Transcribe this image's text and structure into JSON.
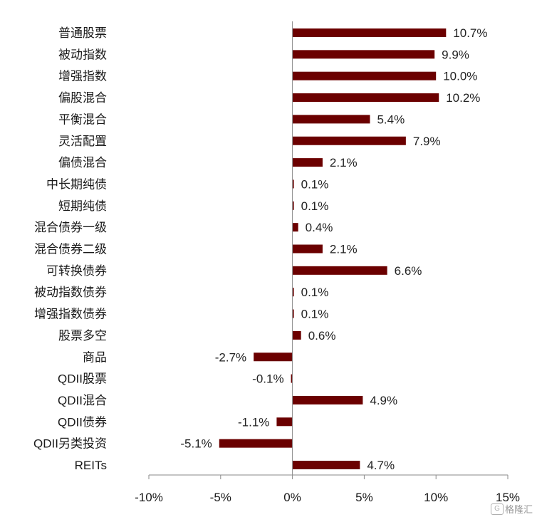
{
  "chart_data": {
    "type": "bar",
    "orientation": "horizontal",
    "categories": [
      "普通股票",
      "被动指数",
      "增强指数",
      "偏股混合",
      "平衡混合",
      "灵活配置",
      "偏债混合",
      "中长期纯债",
      "短期纯债",
      "混合债券一级",
      "混合债券二级",
      "可转换债券",
      "被动指数债券",
      "增强指数债券",
      "股票多空",
      "商品",
      "QDII股票",
      "QDII混合",
      "QDII债券",
      "QDII另类投资",
      "REITs"
    ],
    "values": [
      10.7,
      9.9,
      10.0,
      10.2,
      5.4,
      7.9,
      2.1,
      0.1,
      0.1,
      0.4,
      2.1,
      6.6,
      0.1,
      0.1,
      0.6,
      -2.7,
      -0.1,
      4.9,
      -1.1,
      -5.1,
      4.7
    ],
    "value_labels": [
      "10.7%",
      "9.9%",
      "10.0%",
      "10.2%",
      "5.4%",
      "7.9%",
      "2.1%",
      "0.1%",
      "0.1%",
      "0.4%",
      "2.1%",
      "6.6%",
      "0.1%",
      "0.1%",
      "0.6%",
      "-2.7%",
      "-0.1%",
      "4.9%",
      "-1.1%",
      "-5.1%",
      "4.7%"
    ],
    "xlim": [
      -10,
      15
    ],
    "xticks": [
      -10,
      -5,
      0,
      5,
      10,
      15
    ],
    "xtick_labels": [
      "-10%",
      "-5%",
      "0%",
      "5%",
      "10%",
      "15%"
    ],
    "bar_color": "#6b0000",
    "grid": false,
    "title": "",
    "xlabel": "",
    "ylabel": ""
  },
  "watermark": {
    "text": "格隆汇"
  }
}
